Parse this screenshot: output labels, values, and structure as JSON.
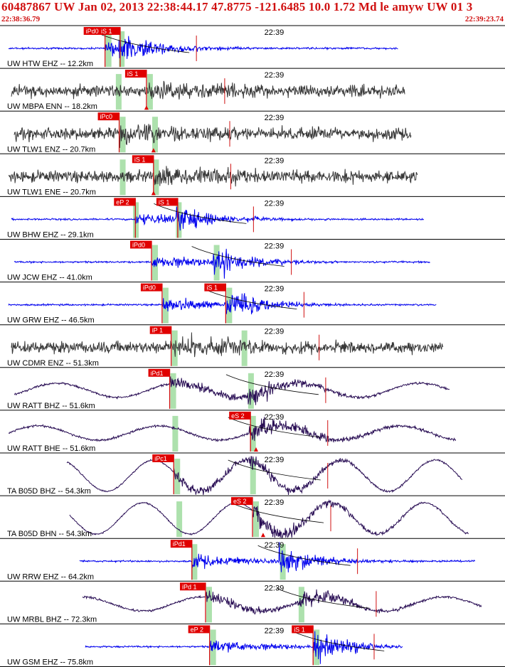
{
  "header": {
    "title": "60487867 UW Jan 02, 2013 22:38:44.17   47.8775 -121.6485 10.0 1.72 Md le amyw UW 01   3",
    "start_time": "22:38:36.79",
    "end_time": "22:39:23.74"
  },
  "colors": {
    "title": "#d01010",
    "pick_box": "#e00000",
    "pick_text": "#ffffff",
    "pick_line": "#d01010",
    "window": "#9fdc9f",
    "blue_trace": "#0000ee",
    "gray_trace": "#383838",
    "purple_trace": "#2a0f55",
    "divider": "#000000"
  },
  "chart_data": {
    "type": "seismogram",
    "time_axis": {
      "start": "22:38:36.79",
      "end": "22:39:23.74",
      "tick_label": "22:39"
    },
    "traces": [
      {
        "label": "UW HTW EHZ -- 12.2km",
        "color": "blue",
        "shape": "burst",
        "picks": [
          {
            "text": "iPd0",
            "time": 0.208
          },
          {
            "text": "iS 1",
            "time": 0.238
          }
        ],
        "windows": [
          0.208,
          0.234
        ]
      },
      {
        "label": "UW MBPA ENN -- 18.2km",
        "color": "gray",
        "shape": "noise",
        "picks": [
          {
            "text": "iS 1",
            "time": 0.29
          }
        ],
        "windows": [
          0.228,
          0.29
        ],
        "marker_time": 0.29
      },
      {
        "label": "UW TLW1 ENZ -- 20.7km",
        "color": "gray",
        "shape": "noise",
        "picks": [
          {
            "text": "iPc0",
            "time": 0.236
          }
        ],
        "windows": [
          0.236,
          0.3
        ],
        "marker_time": 0.304
      },
      {
        "label": "UW TLW1 ENE -- 20.7km",
        "color": "gray",
        "shape": "noise",
        "picks": [
          {
            "text": "iS 1",
            "time": 0.304
          }
        ],
        "windows": [
          0.236,
          0.302
        ],
        "marker_time": 0.304
      },
      {
        "label": "UW BHW EHZ -- 29.1km",
        "color": "blue",
        "shape": "burst",
        "picks": [
          {
            "text": "eP 2",
            "time": 0.268
          },
          {
            "text": "iS 1",
            "time": 0.352
          }
        ],
        "windows": [
          0.262,
          0.347
        ]
      },
      {
        "label": "UW JCW EHZ -- 41.0km",
        "color": "blue",
        "shape": "burst",
        "picks": [
          {
            "text": "iPd0",
            "time": 0.3
          }
        ],
        "windows": [
          0.3,
          0.422
        ]
      },
      {
        "label": "UW GRW EHZ -- 46.5km",
        "color": "blue",
        "shape": "burst",
        "picks": [
          {
            "text": "iPd0",
            "time": 0.321
          },
          {
            "text": "iS 1",
            "time": 0.447
          }
        ],
        "windows": [
          0.321,
          0.447
        ]
      },
      {
        "label": "UW CDMR ENZ -- 51.3km",
        "color": "gray",
        "shape": "noise",
        "picks": [
          {
            "text": "iP 1",
            "time": 0.339
          }
        ],
        "windows": [
          0.339,
          0.477
        ]
      },
      {
        "label": "UW RATT BHZ -- 51.6km",
        "color": "purple",
        "shape": "wave",
        "picks": [
          {
            "text": "iPd1",
            "time": 0.336
          }
        ],
        "windows": [
          0.336,
          0.49
        ]
      },
      {
        "label": "UW RATT BHE -- 51.6km",
        "color": "purple",
        "shape": "wave",
        "picks": [
          {
            "text": "eS 2",
            "time": 0.496
          }
        ],
        "windows": [
          0.34,
          0.494
        ],
        "marker_time": 0.507
      },
      {
        "label": "TA B05D BHZ -- 54.3km",
        "color": "purple",
        "shape": "longwave",
        "picks": [
          {
            "text": "iPc1",
            "time": 0.344
          }
        ],
        "windows": [
          0.344,
          0.494
        ]
      },
      {
        "label": "TA B05D BHN -- 54.3km",
        "color": "purple",
        "shape": "longwave",
        "picks": [
          {
            "text": "eS 2",
            "time": 0.5
          }
        ],
        "windows": [
          0.348,
          0.5
        ],
        "marker_time": 0.521
      },
      {
        "label": "UW RRW EHZ -- 64.2km",
        "color": "blue",
        "shape": "burst",
        "picks": [
          {
            "text": "iPd1",
            "time": 0.38
          }
        ],
        "windows": [
          0.378,
          0.553
        ]
      },
      {
        "label": "UW MRBL BHZ -- 72.3km",
        "color": "purple",
        "shape": "wave",
        "picks": [
          {
            "text": "iPd 1",
            "time": 0.407
          }
        ],
        "windows": [
          0.407,
          0.59
        ]
      },
      {
        "label": "UW GSM EHZ -- 75.8km",
        "color": "blue",
        "shape": "burst",
        "picks": [
          {
            "text": "eP 2",
            "time": 0.415
          },
          {
            "text": "iS 1",
            "time": 0.62
          }
        ],
        "windows": [
          0.415,
          0.62
        ]
      }
    ]
  }
}
